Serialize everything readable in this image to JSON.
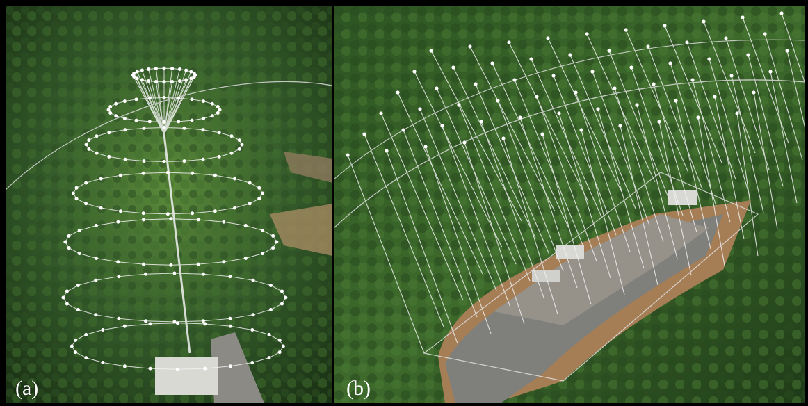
{
  "figure": {
    "panels": [
      {
        "label": "(a)",
        "icon": "radial-antenna-array-icon"
      },
      {
        "label": "(b)",
        "icon": "grid-antenna-array-icon"
      }
    ],
    "colors": {
      "border": "#000000",
      "forest_dark": "#1f3a17",
      "forest_mid": "#3f6a2a",
      "forest_light": "#6e9a4a",
      "road": "#8a8a86",
      "ground": "#a07a55",
      "wire": "#f2f2f2"
    }
  }
}
